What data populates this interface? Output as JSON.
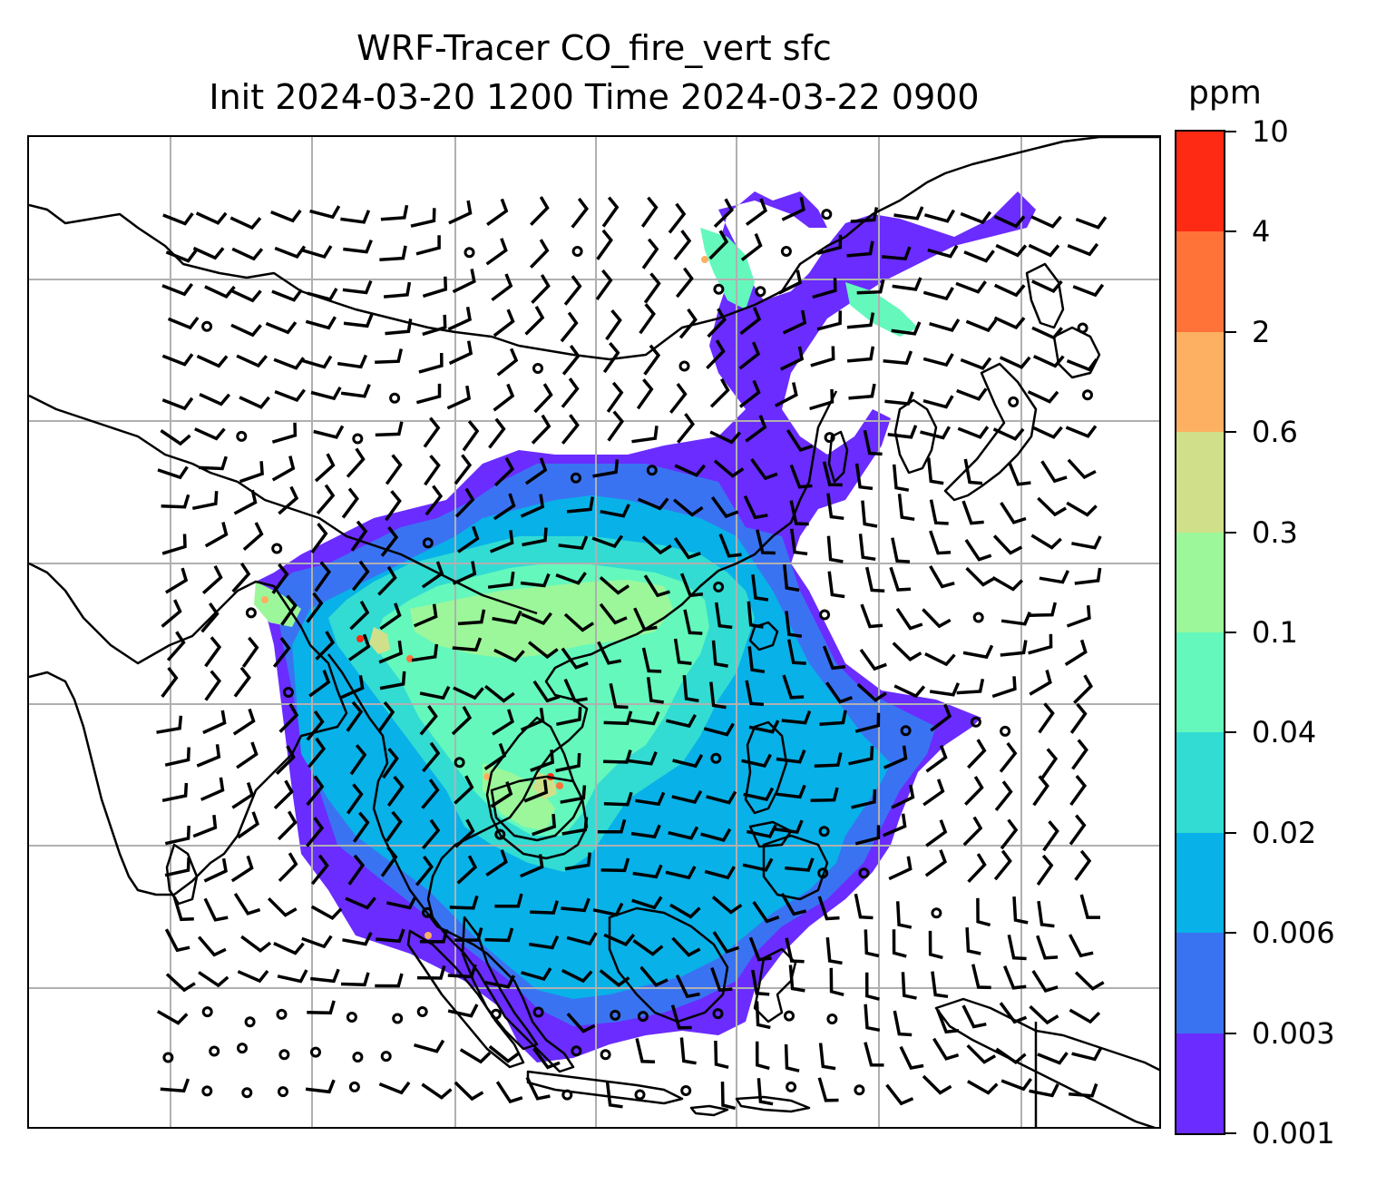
{
  "title": {
    "line1": "WRF-Tracer CO_fire_vert sfc",
    "line2": "Init 2024-03-20 1200 Time 2024-03-22 0900"
  },
  "colorbar": {
    "unit": "ppm",
    "levels": [
      "0.001",
      "0.003",
      "0.006",
      "0.02",
      "0.04",
      "0.1",
      "0.3",
      "0.6",
      "2",
      "4",
      "10"
    ],
    "colors": [
      "#6a2cff",
      "#3a73f2",
      "#08b1e8",
      "#32dcd2",
      "#64f8bc",
      "#9cf79a",
      "#d0e08a",
      "#fdb062",
      "#ff7238",
      "#ff2a14"
    ]
  },
  "map": {
    "graticule": "on",
    "coastline_color": "#000000",
    "grid_color": "#b0b0b0",
    "wind_barbs": "on",
    "calm_circles": "on"
  }
}
